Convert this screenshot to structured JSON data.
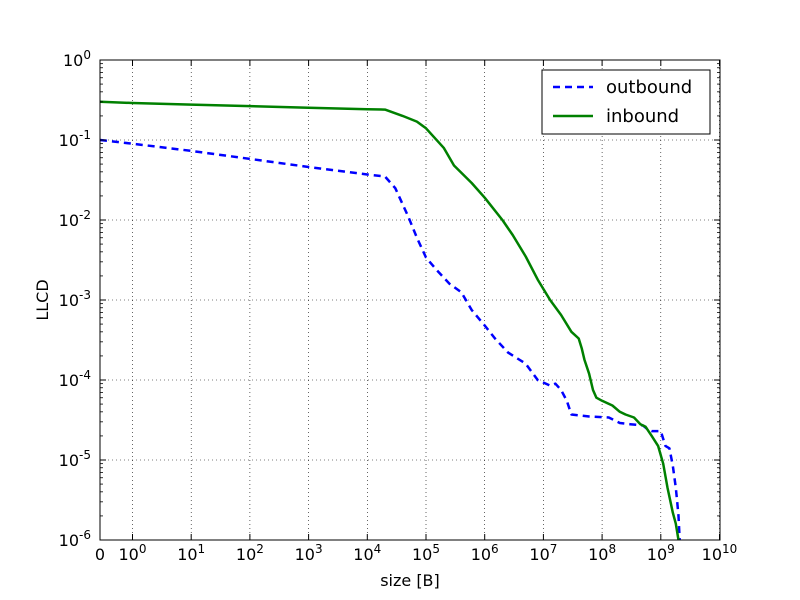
{
  "chart_data": {
    "type": "line",
    "title": "",
    "xlabel": "size [B]",
    "ylabel": "LLCD",
    "x_scale": "symlog",
    "y_scale": "log",
    "xlim": [
      0,
      10000000000
    ],
    "ylim": [
      1e-06,
      1
    ],
    "grid": true,
    "legend_position": "top-right",
    "x_ticks": [
      {
        "value": 0,
        "base": "0",
        "exp": ""
      },
      {
        "value": 1,
        "base": "10",
        "exp": "0"
      },
      {
        "value": 10,
        "base": "10",
        "exp": "1"
      },
      {
        "value": 100,
        "base": "10",
        "exp": "2"
      },
      {
        "value": 1000,
        "base": "10",
        "exp": "3"
      },
      {
        "value": 10000,
        "base": "10",
        "exp": "4"
      },
      {
        "value": 100000,
        "base": "10",
        "exp": "5"
      },
      {
        "value": 1000000,
        "base": "10",
        "exp": "6"
      },
      {
        "value": 10000000,
        "base": "10",
        "exp": "7"
      },
      {
        "value": 100000000,
        "base": "10",
        "exp": "8"
      },
      {
        "value": 1000000000,
        "base": "10",
        "exp": "9"
      },
      {
        "value": 10000000000,
        "base": "10",
        "exp": "10"
      }
    ],
    "y_ticks": [
      {
        "value": 1,
        "base": "10",
        "exp": "0"
      },
      {
        "value": 0.1,
        "base": "10",
        "exp": "-1"
      },
      {
        "value": 0.01,
        "base": "10",
        "exp": "-2"
      },
      {
        "value": 0.001,
        "base": "10",
        "exp": "-3"
      },
      {
        "value": 0.0001,
        "base": "10",
        "exp": "-4"
      },
      {
        "value": 1e-05,
        "base": "10",
        "exp": "-5"
      },
      {
        "value": 1e-06,
        "base": "10",
        "exp": "-6"
      }
    ],
    "series": [
      {
        "name": "outbound",
        "color": "#0000ff",
        "style": "dashed",
        "points": [
          [
            0,
            0.1
          ],
          [
            1,
            0.09
          ],
          [
            10,
            0.073
          ],
          [
            100,
            0.058
          ],
          [
            1000,
            0.046
          ],
          [
            10000,
            0.037
          ],
          [
            20000,
            0.035
          ],
          [
            30000,
            0.025
          ],
          [
            50000,
            0.011
          ],
          [
            70000,
            0.006
          ],
          [
            100000,
            0.0034
          ],
          [
            150000,
            0.0024
          ],
          [
            250000,
            0.0016
          ],
          [
            400000,
            0.00125
          ],
          [
            600000,
            0.00075
          ],
          [
            1000000,
            0.00048
          ],
          [
            1500000,
            0.00033
          ],
          [
            2500000,
            0.00022
          ],
          [
            5000000,
            0.00016
          ],
          [
            8000000,
            0.0001
          ],
          [
            13000000,
            8.5e-05
          ],
          [
            16000000,
            9e-05
          ],
          [
            20000000,
            7.5e-05
          ],
          [
            25000000,
            5.5e-05
          ],
          [
            30000000,
            3.7e-05
          ],
          [
            60000000,
            3.5e-05
          ],
          [
            130000000,
            3.4e-05
          ],
          [
            200000000,
            2.9e-05
          ],
          [
            300000000,
            2.8e-05
          ],
          [
            500000000,
            2.7e-05
          ],
          [
            600000000,
            2.4e-05
          ],
          [
            700000000,
            2.3e-05
          ],
          [
            1000000000,
            2.3e-05
          ],
          [
            1200000000,
            1.5e-05
          ],
          [
            1400000000,
            1.4e-05
          ],
          [
            1600000000,
            8.5e-06
          ],
          [
            1800000000,
            4.5e-06
          ],
          [
            1900000000,
            3e-06
          ],
          [
            2000000000,
            2e-06
          ],
          [
            2100000000,
            1e-06
          ]
        ]
      },
      {
        "name": "inbound",
        "color": "#008000",
        "style": "solid",
        "points": [
          [
            0,
            0.3
          ],
          [
            1,
            0.29
          ],
          [
            10,
            0.277
          ],
          [
            100,
            0.265
          ],
          [
            1000,
            0.253
          ],
          [
            10000,
            0.242
          ],
          [
            20000,
            0.24
          ],
          [
            40000,
            0.2
          ],
          [
            70000,
            0.17
          ],
          [
            100000,
            0.14
          ],
          [
            200000,
            0.08
          ],
          [
            300000,
            0.048
          ],
          [
            600000,
            0.029
          ],
          [
            1000000,
            0.019
          ],
          [
            2000000,
            0.01
          ],
          [
            3000000,
            0.0065
          ],
          [
            5000000,
            0.0035
          ],
          [
            8000000,
            0.0018
          ],
          [
            13000000,
            0.001
          ],
          [
            20000000,
            0.00065
          ],
          [
            30000000,
            0.0004
          ],
          [
            40000000,
            0.00033
          ],
          [
            45000000,
            0.00025
          ],
          [
            50000000,
            0.00018
          ],
          [
            60000000,
            0.00012
          ],
          [
            70000000,
            7.5e-05
          ],
          [
            80000000,
            6e-05
          ],
          [
            100000000,
            5.5e-05
          ],
          [
            150000000,
            4.8e-05
          ],
          [
            200000000,
            4e-05
          ],
          [
            250000000,
            3.7e-05
          ],
          [
            350000000,
            3.4e-05
          ],
          [
            450000000,
            2.8e-05
          ],
          [
            550000000,
            2.6e-05
          ],
          [
            700000000,
            2e-05
          ],
          [
            900000000,
            1.5e-05
          ],
          [
            1100000000,
            9e-06
          ],
          [
            1300000000,
            4.5e-06
          ],
          [
            1600000000,
            2.2e-06
          ],
          [
            1800000000,
            1.6e-06
          ],
          [
            2000000000,
            1e-06
          ]
        ]
      }
    ]
  }
}
